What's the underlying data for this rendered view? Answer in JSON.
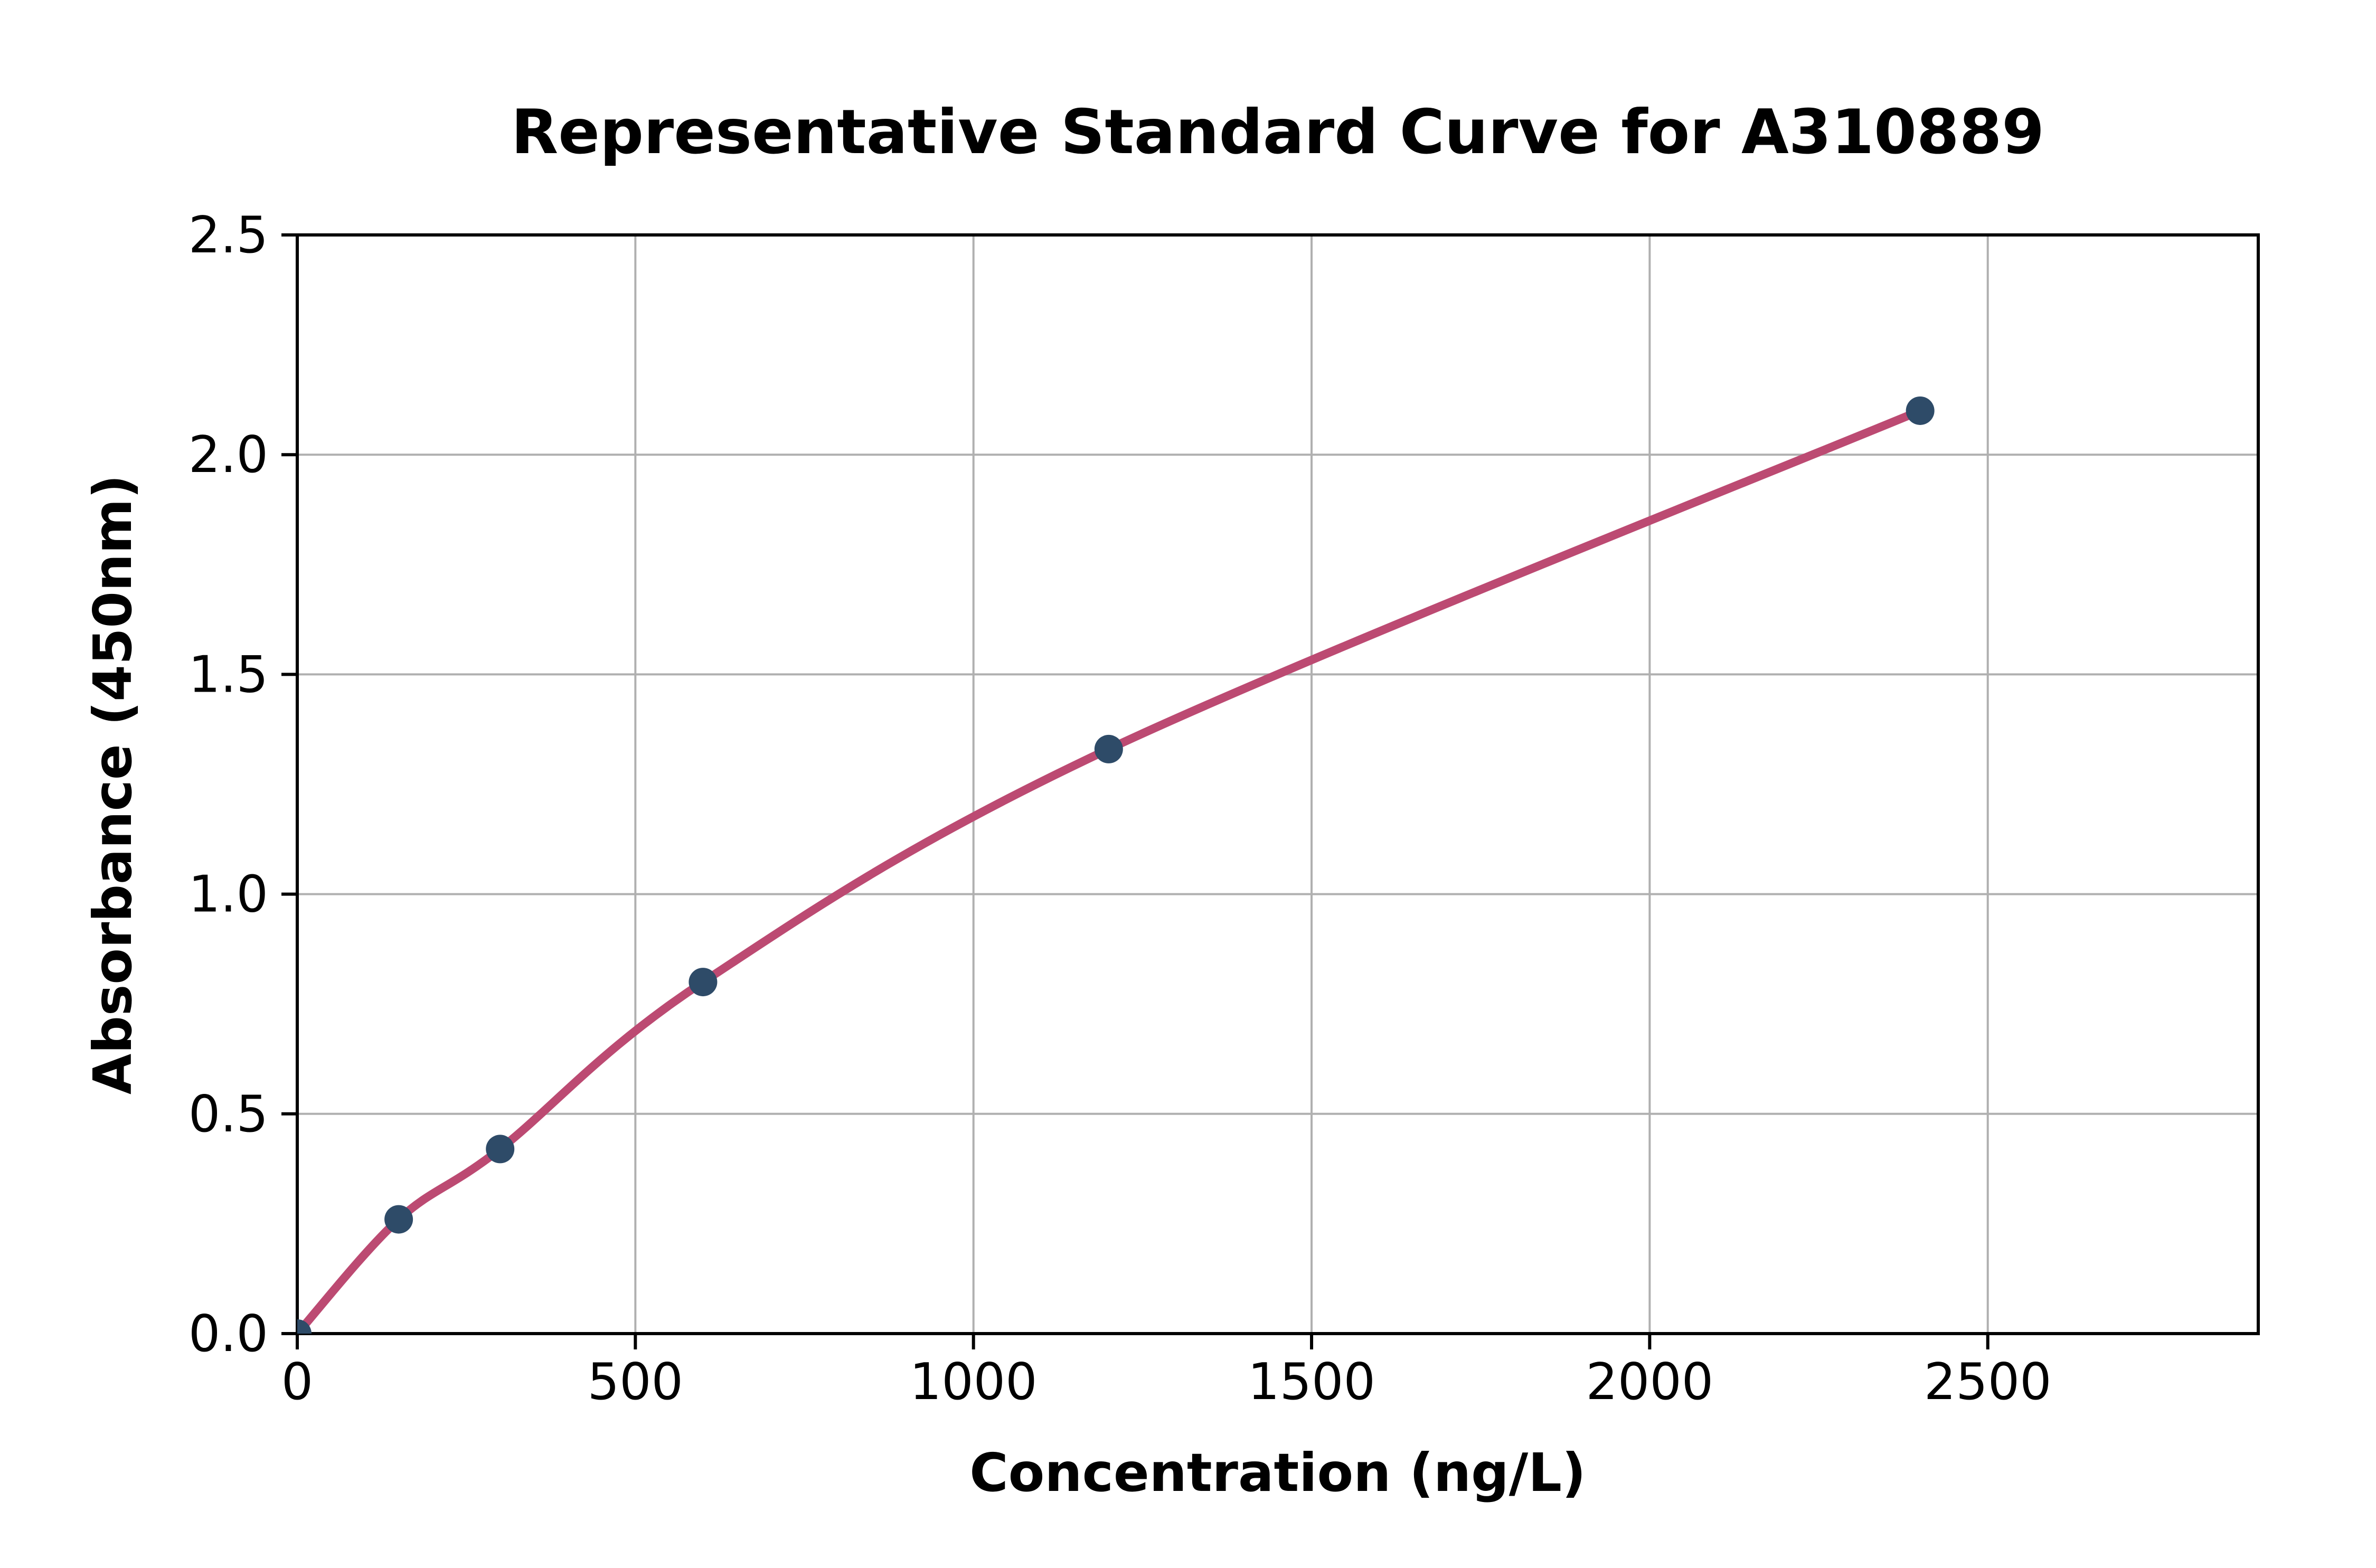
{
  "figure": {
    "background_color": "#FFFFFF"
  },
  "chart_data": {
    "type": "line",
    "title": "Representative Standard Curve for A310889",
    "xlabel": "Concentration (ng/L)",
    "ylabel": "Absorbance (450nm)",
    "x": [
      0,
      150,
      300,
      600,
      1200,
      2400
    ],
    "y": [
      0,
      0.26,
      0.42,
      0.8,
      1.33,
      2.1
    ],
    "xlim": [
      0,
      2900
    ],
    "ylim": [
      0,
      2.5
    ],
    "xticks": [
      0,
      500,
      1000,
      1500,
      2000,
      2500
    ],
    "xtick_labels": [
      "0",
      "500",
      "1000",
      "1500",
      "2000",
      "2500"
    ],
    "yticks": [
      0,
      0.5,
      1.0,
      1.5,
      2.0,
      2.5
    ],
    "ytick_labels": [
      "0.0",
      "0.5",
      "1.0",
      "1.5",
      "2.0",
      "2.5"
    ],
    "grid": true,
    "legend_position": "none",
    "marker": "circle",
    "line_color": "#BC4A72",
    "marker_color": "#2E4B68",
    "grid_color": "#B0B0B0",
    "axis_color": "#000000"
  }
}
